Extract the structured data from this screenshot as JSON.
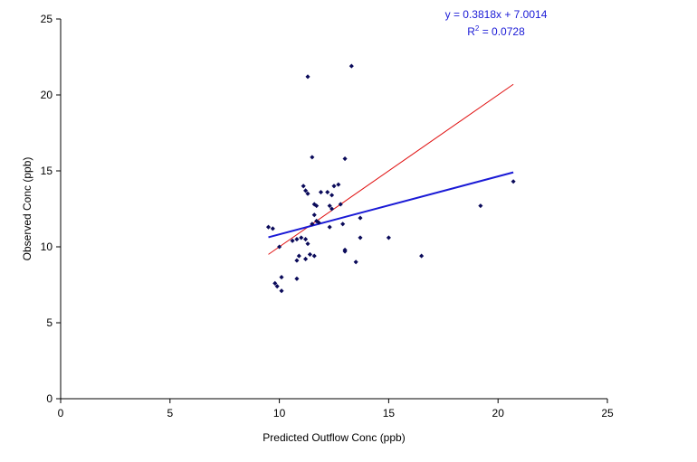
{
  "chart_data": {
    "type": "scatter",
    "title": "",
    "xlabel": "Predicted Outflow Conc (ppb)",
    "ylabel": "Observed Conc (ppb)",
    "xlim": [
      0,
      25
    ],
    "ylim": [
      0,
      25
    ],
    "x_ticks": [
      "0",
      "5",
      "10",
      "15",
      "20",
      "25"
    ],
    "y_ticks": [
      "0",
      "5",
      "10",
      "15",
      "20",
      "25"
    ],
    "grid": false,
    "legend": "none",
    "colors": {
      "points": "#0a0a5a",
      "trend_line": "#1a1ad6",
      "identity_line": "#e01010",
      "equation_text": "#1a1ad6"
    },
    "points": [
      [
        9.5,
        11.3
      ],
      [
        9.7,
        11.2
      ],
      [
        9.8,
        7.6
      ],
      [
        9.9,
        7.4
      ],
      [
        10.0,
        10.0
      ],
      [
        10.1,
        8.0
      ],
      [
        10.1,
        7.1
      ],
      [
        10.6,
        10.4
      ],
      [
        10.8,
        10.5
      ],
      [
        10.8,
        9.1
      ],
      [
        10.8,
        7.9
      ],
      [
        10.9,
        9.4
      ],
      [
        11.0,
        10.6
      ],
      [
        11.1,
        14.0
      ],
      [
        11.2,
        13.7
      ],
      [
        11.2,
        10.5
      ],
      [
        11.2,
        9.2
      ],
      [
        11.3,
        13.5
      ],
      [
        11.3,
        10.2
      ],
      [
        11.3,
        21.2
      ],
      [
        11.4,
        9.5
      ],
      [
        11.5,
        15.9
      ],
      [
        11.5,
        11.5
      ],
      [
        11.6,
        12.8
      ],
      [
        11.6,
        12.1
      ],
      [
        11.6,
        9.4
      ],
      [
        11.7,
        12.7
      ],
      [
        11.7,
        11.7
      ],
      [
        11.8,
        11.6
      ],
      [
        11.9,
        13.6
      ],
      [
        12.2,
        13.6
      ],
      [
        12.3,
        12.7
      ],
      [
        12.3,
        11.3
      ],
      [
        12.4,
        13.4
      ],
      [
        12.4,
        12.5
      ],
      [
        12.5,
        14.0
      ],
      [
        12.7,
        14.1
      ],
      [
        12.8,
        12.8
      ],
      [
        12.9,
        11.5
      ],
      [
        13.0,
        9.8
      ],
      [
        13.0,
        9.7
      ],
      [
        13.0,
        15.8
      ],
      [
        13.3,
        21.9
      ],
      [
        13.5,
        9.0
      ],
      [
        13.7,
        11.9
      ],
      [
        13.7,
        10.6
      ],
      [
        15.0,
        10.6
      ],
      [
        16.5,
        9.4
      ],
      [
        19.2,
        12.7
      ],
      [
        20.7,
        14.3
      ]
    ],
    "trend_line": {
      "slope": 0.3818,
      "intercept": 7.0014,
      "x_range": [
        9.5,
        20.7
      ]
    },
    "identity_line": {
      "x_range": [
        9.5,
        20.7
      ]
    },
    "annotations": {
      "equation": "y = 0.3818x + 7.0014",
      "r2_prefix": "R",
      "r2_sup": "2",
      "r2_value": " = 0.0728"
    }
  }
}
